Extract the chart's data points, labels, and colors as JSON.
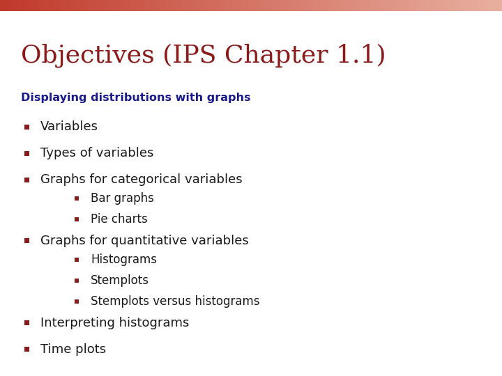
{
  "title": "Objectives (IPS Chapter 1.1)",
  "title_color": "#8B1A1A",
  "title_fontsize": 26,
  "subtitle": "Displaying distributions with graphs",
  "subtitle_color": "#1a1a8c",
  "subtitle_fontsize": 11.5,
  "header_bar_color_left": "#c0392b",
  "header_bar_color_right": "#e8b0a0",
  "header_bar_height": 0.03,
  "background_color": "#ffffff",
  "bullet_color_l1": "#8B1A1A",
  "bullet_color_l2": "#8B1A1A",
  "text_color_l1": "#1a1a1a",
  "text_color_l2": "#1a1a1a",
  "font_size_l1": 13,
  "font_size_l2": 12,
  "items": [
    {
      "level": 1,
      "text": "Variables"
    },
    {
      "level": 1,
      "text": "Types of variables"
    },
    {
      "level": 1,
      "text": "Graphs for categorical variables"
    },
    {
      "level": 2,
      "text": "Bar graphs"
    },
    {
      "level": 2,
      "text": "Pie charts"
    },
    {
      "level": 1,
      "text": "Graphs for quantitative variables"
    },
    {
      "level": 2,
      "text": "Histograms"
    },
    {
      "level": 2,
      "text": "Stemplots"
    },
    {
      "level": 2,
      "text": "Stemplots versus histograms"
    },
    {
      "level": 1,
      "text": "Interpreting histograms"
    },
    {
      "level": 1,
      "text": "Time plots"
    }
  ]
}
